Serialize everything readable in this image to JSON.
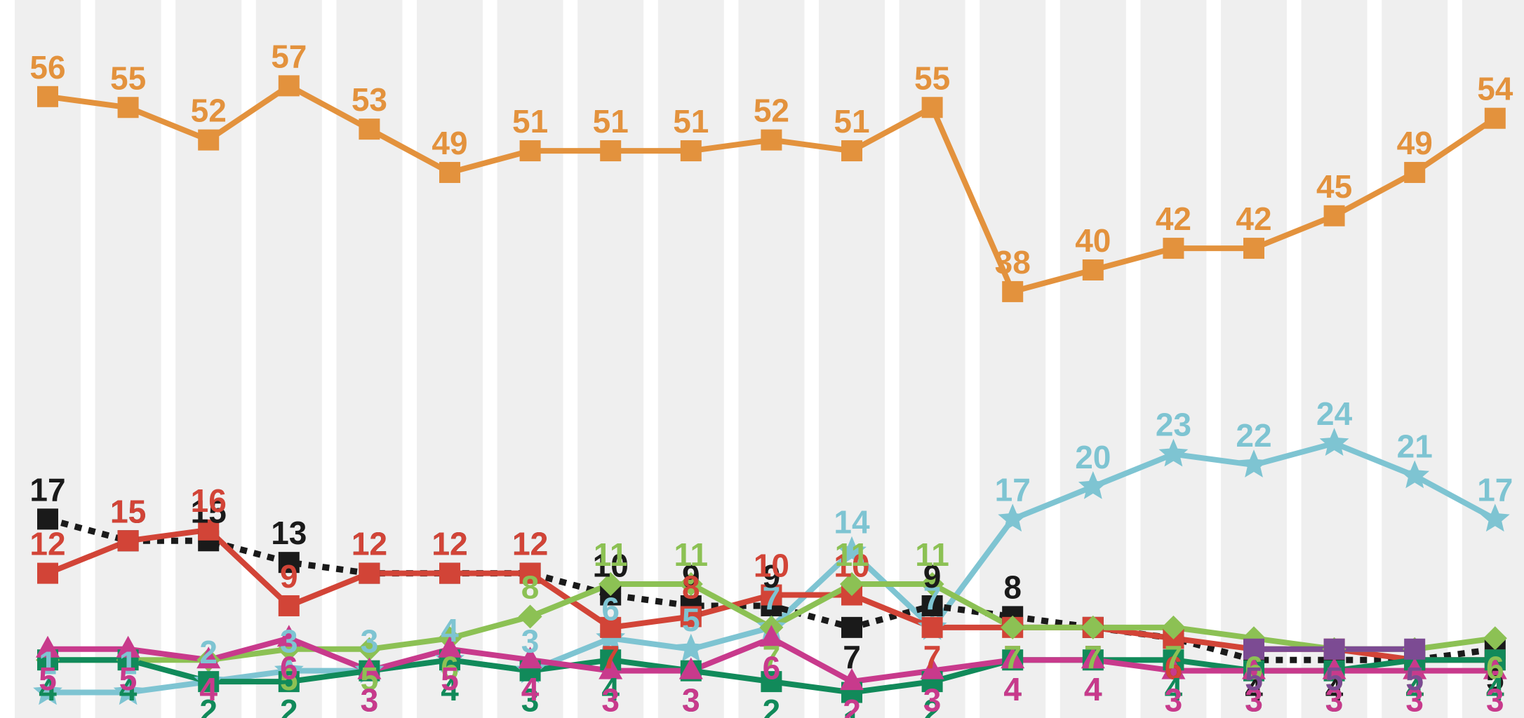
{
  "chart_data": {
    "type": "line",
    "title": "",
    "xlabel": "",
    "ylabel": "",
    "ylim": [
      0,
      60
    ],
    "x_count": 19,
    "grid": "alternating vertical bands",
    "series": [
      {
        "color": "#e3923d",
        "marker": "square",
        "dash": false,
        "values": [
          56,
          55,
          52,
          57,
          53,
          49,
          51,
          51,
          51,
          52,
          51,
          55,
          38,
          40,
          42,
          42,
          45,
          49,
          54
        ]
      },
      {
        "color": "#7ec4d2",
        "marker": "star",
        "dash": false,
        "values": [
          1,
          1,
          2,
          3,
          3,
          4,
          3,
          6,
          5,
          7,
          14,
          7,
          17,
          20,
          23,
          22,
          24,
          21,
          17
        ]
      },
      {
        "color": "#1a1a1a",
        "marker": "square",
        "dash": true,
        "values": [
          17,
          15,
          15,
          13,
          12,
          12,
          12,
          10,
          9,
          9,
          7,
          9,
          8,
          7,
          6,
          4,
          4,
          4,
          5
        ]
      },
      {
        "color": "#d24437",
        "marker": "square",
        "dash": false,
        "values": [
          12,
          15,
          16,
          9,
          12,
          12,
          12,
          7,
          8,
          10,
          10,
          7,
          7,
          7,
          6,
          5,
          5,
          4,
          4
        ]
      },
      {
        "color": "#8cc154",
        "marker": "diamond",
        "dash": false,
        "values": [
          4,
          4,
          4,
          5,
          5,
          6,
          8,
          11,
          11,
          7,
          11,
          11,
          7,
          7,
          7,
          6,
          5,
          5,
          6
        ]
      },
      {
        "color": "#118a5a",
        "marker": "square",
        "dash": false,
        "values": [
          4,
          4,
          2,
          2,
          3,
          4,
          3,
          4,
          3,
          2,
          1,
          2,
          4,
          4,
          4,
          3,
          3,
          4,
          4
        ]
      },
      {
        "color": "#c83a8c",
        "marker": "triangle",
        "dash": false,
        "values": [
          5,
          5,
          4,
          6,
          3,
          5,
          4,
          3,
          3,
          6,
          2,
          3,
          4,
          4,
          3,
          3,
          3,
          3,
          3
        ]
      },
      {
        "color": "#7c4b93",
        "marker": "square",
        "dash": false,
        "values": [
          null,
          null,
          null,
          null,
          null,
          null,
          null,
          null,
          null,
          null,
          null,
          null,
          null,
          null,
          null,
          5,
          5,
          5,
          null
        ]
      }
    ]
  }
}
